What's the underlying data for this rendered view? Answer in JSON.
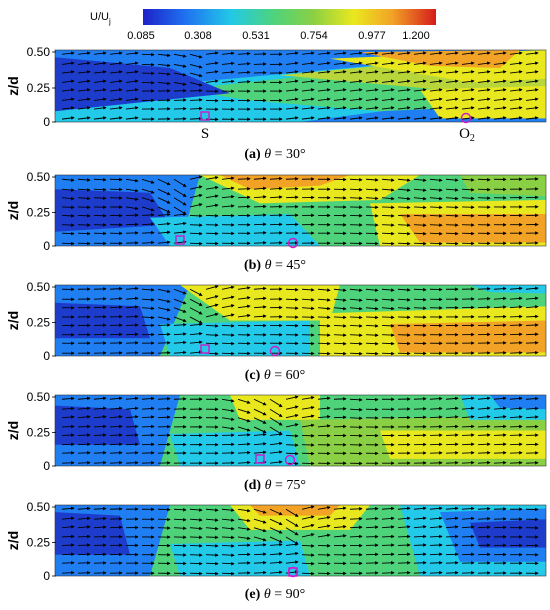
{
  "colorbar": {
    "label_main": "U/U",
    "label_sub": "j",
    "ticks": [
      "0.085",
      "0.308",
      "0.531",
      "0.754",
      "0.977",
      "1.200"
    ],
    "colors": [
      "#1e22c8",
      "#1f6ff0",
      "#22c9e8",
      "#4fd37a",
      "#8ad044",
      "#e9e81e",
      "#f2a326",
      "#e23a1e",
      "#d51c1c"
    ]
  },
  "axis": {
    "ylabel": "z/d",
    "yticks": [
      "0.50",
      "0.25",
      "0"
    ]
  },
  "panels": [
    {
      "letter": "(a)",
      "theta": "30°",
      "markers": [
        {
          "label": "S",
          "shape": "square"
        },
        {
          "label": "O",
          "sub": "2",
          "shape": "circle"
        }
      ]
    },
    {
      "letter": "(b)",
      "theta": "45°",
      "markers": []
    },
    {
      "letter": "(c)",
      "theta": "60°",
      "markers": []
    },
    {
      "letter": "(d)",
      "theta": "75°",
      "markers": []
    },
    {
      "letter": "(e)",
      "theta": "90°",
      "markers": []
    }
  ]
}
